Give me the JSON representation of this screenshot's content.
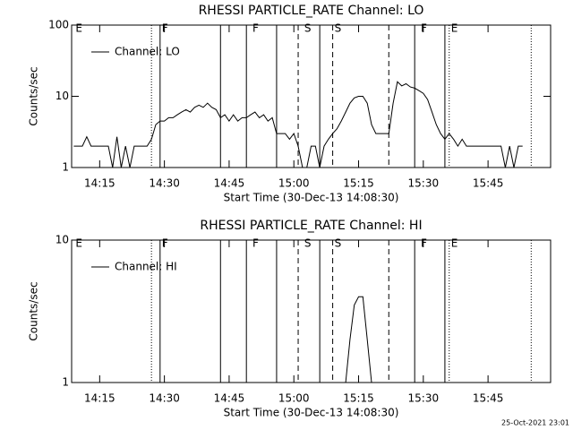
{
  "chart_data": [
    {
      "type": "line",
      "title": "RHESSI PARTICLE_RATE Channel: LO",
      "x_label": "Start Time (30-Dec-13 14:08:30)",
      "y_label": "Counts/sec",
      "y_log": true,
      "legend": "upper left",
      "color": "#000000",
      "xlim": [
        "14:08:30",
        "15:59:30"
      ],
      "xticks": [
        "14:15",
        "14:30",
        "14:45",
        "15:00",
        "15:15",
        "15:30",
        "15:45"
      ],
      "ylim": [
        1,
        100
      ],
      "yticks": [
        1,
        10,
        100
      ],
      "x": [
        "14:09",
        "14:10",
        "14:11",
        "14:12",
        "14:13",
        "14:14",
        "14:15",
        "14:16",
        "14:17",
        "14:18",
        "14:19",
        "14:20",
        "14:21",
        "14:22",
        "14:23",
        "14:24",
        "14:25",
        "14:26",
        "14:27",
        "14:28",
        "14:29",
        "14:30",
        "14:31",
        "14:32",
        "14:33",
        "14:34",
        "14:35",
        "14:36",
        "14:37",
        "14:38",
        "14:39",
        "14:40",
        "14:41",
        "14:42",
        "14:43",
        "14:44",
        "14:45",
        "14:46",
        "14:47",
        "14:48",
        "14:49",
        "14:50",
        "14:51",
        "14:52",
        "14:53",
        "14:54",
        "14:55",
        "14:56",
        "14:57",
        "14:58",
        "14:59",
        "15:00",
        "15:01",
        "15:02",
        "15:03",
        "15:04",
        "15:05",
        "15:06",
        "15:07",
        "15:08",
        "15:09",
        "15:10",
        "15:11",
        "15:12",
        "15:13",
        "15:14",
        "15:15",
        "15:16",
        "15:17",
        "15:18",
        "15:19",
        "15:20",
        "15:21",
        "15:22",
        "15:23",
        "15:24",
        "15:25",
        "15:26",
        "15:27",
        "15:28",
        "15:29",
        "15:30",
        "15:31",
        "15:32",
        "15:33",
        "15:34",
        "15:35",
        "15:36",
        "15:37",
        "15:38",
        "15:39",
        "15:40",
        "15:41",
        "15:42",
        "15:43",
        "15:44",
        "15:45",
        "15:46",
        "15:47",
        "15:48",
        "15:49",
        "15:50",
        "15:51",
        "15:52",
        "15:53"
      ],
      "series": [
        {
          "name": "Channel: LO",
          "values": [
            2,
            2,
            2,
            2.7,
            2,
            2,
            2,
            2,
            2,
            1,
            2.7,
            1,
            2,
            1,
            2,
            2,
            2,
            2,
            2.5,
            4,
            4.5,
            4.5,
            5,
            5,
            5.5,
            6,
            6.5,
            6,
            7,
            7.5,
            7,
            8,
            7,
            6.5,
            5,
            5.5,
            4.5,
            5.5,
            4.5,
            5,
            5,
            5.5,
            6,
            5,
            5.5,
            4.5,
            5,
            3,
            3,
            3,
            2.5,
            3,
            2,
            1,
            1,
            2,
            2,
            1,
            2,
            2.5,
            3,
            3.5,
            4.5,
            6,
            8,
            9.5,
            10,
            10,
            8,
            4,
            3,
            3,
            3,
            3,
            8,
            16,
            14,
            15,
            13.5,
            13,
            12,
            11,
            9,
            6,
            4,
            3,
            2.5,
            3,
            2.5,
            2,
            2.5,
            2,
            2,
            2,
            2,
            2,
            2,
            2,
            2,
            2,
            1,
            2,
            1,
            2,
            2
          ]
        }
      ],
      "markers": [
        {
          "x": "14:27",
          "style": "dotted"
        },
        {
          "x": "14:29",
          "style": "solid"
        },
        {
          "x": "14:43",
          "style": "solid"
        },
        {
          "x": "14:49",
          "style": "solid"
        },
        {
          "x": "14:56",
          "style": "solid"
        },
        {
          "x": "15:01",
          "style": "dashed"
        },
        {
          "x": "15:06",
          "style": "solid"
        },
        {
          "x": "15:09",
          "style": "dashed"
        },
        {
          "x": "15:22",
          "style": "dashed"
        },
        {
          "x": "15:28",
          "style": "solid"
        },
        {
          "x": "15:35",
          "style": "solid"
        },
        {
          "x": "15:36",
          "style": "dotted"
        },
        {
          "x": "15:55",
          "style": "dotted"
        }
      ],
      "flags": [
        {
          "x": "14:09",
          "label": "E"
        },
        {
          "x": "14:29",
          "label": "F"
        },
        {
          "x": "14:50",
          "label": "F"
        },
        {
          "x": "15:02",
          "label": "S"
        },
        {
          "x": "15:09",
          "label": "S"
        },
        {
          "x": "15:29",
          "label": "F"
        },
        {
          "x": "15:36",
          "label": "E"
        }
      ]
    },
    {
      "type": "line",
      "title": "RHESSI PARTICLE_RATE Channel: HI",
      "x_label": "Start Time (30-Dec-13 14:08:30)",
      "y_label": "Counts/sec",
      "y_log": true,
      "legend": "upper left",
      "color": "#000000",
      "xlim": [
        "14:08:30",
        "15:59:30"
      ],
      "xticks": [
        "14:15",
        "14:30",
        "14:45",
        "15:00",
        "15:15",
        "15:30",
        "15:45"
      ],
      "ylim": [
        1,
        10
      ],
      "yticks": [
        1,
        10
      ],
      "x": [
        "15:12",
        "15:13",
        "15:14",
        "15:15",
        "15:16",
        "15:17",
        "15:18"
      ],
      "series": [
        {
          "name": "Channel: HI",
          "values": [
            1,
            2,
            3.5,
            4,
            4,
            2,
            1
          ]
        }
      ],
      "markers": [
        {
          "x": "14:27",
          "style": "dotted"
        },
        {
          "x": "14:29",
          "style": "solid"
        },
        {
          "x": "14:43",
          "style": "solid"
        },
        {
          "x": "14:49",
          "style": "solid"
        },
        {
          "x": "14:56",
          "style": "solid"
        },
        {
          "x": "15:01",
          "style": "dashed"
        },
        {
          "x": "15:06",
          "style": "solid"
        },
        {
          "x": "15:09",
          "style": "dashed"
        },
        {
          "x": "15:22",
          "style": "dashed"
        },
        {
          "x": "15:28",
          "style": "solid"
        },
        {
          "x": "15:35",
          "style": "solid"
        },
        {
          "x": "15:36",
          "style": "dotted"
        },
        {
          "x": "15:55",
          "style": "dotted"
        }
      ],
      "flags": [
        {
          "x": "14:09",
          "label": "E"
        },
        {
          "x": "14:29",
          "label": "F"
        },
        {
          "x": "14:50",
          "label": "F"
        },
        {
          "x": "15:02",
          "label": "S"
        },
        {
          "x": "15:09",
          "label": "S"
        },
        {
          "x": "15:29",
          "label": "F"
        },
        {
          "x": "15:36",
          "label": "E"
        }
      ]
    }
  ],
  "footer": "25-Oct-2021 23:01"
}
